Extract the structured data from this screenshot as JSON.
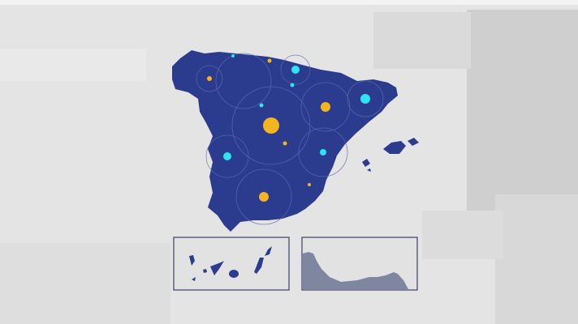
{
  "colors": {
    "background": "#e4e4e4",
    "land": "#2b3b8e",
    "marker_yellow": "#f4b41f",
    "marker_cyan": "#2fe3f0",
    "inset_border": "#3a3f6a",
    "inset_land_ceuta_melilla": "#7e879f"
  },
  "map": {
    "region": "Spain",
    "insets": [
      "canary-islands",
      "ceuta-melilla"
    ]
  }
}
